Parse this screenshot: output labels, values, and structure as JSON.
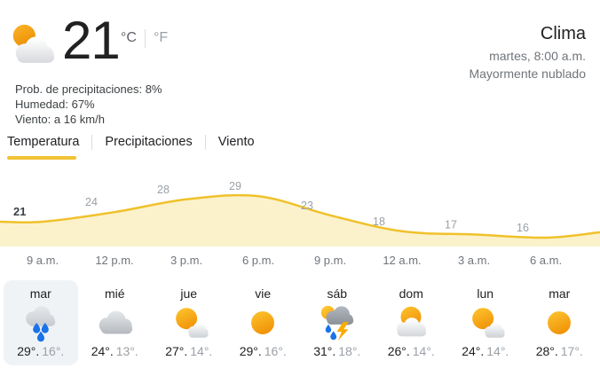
{
  "header": {
    "title": "Clima",
    "subtitle": "martes, 8:00 a.m.",
    "condition": "Mayormente nublado"
  },
  "current": {
    "temperature": "21",
    "unit_celsius": "°C",
    "unit_fahrenheit": "°F",
    "icon": "mostly-cloudy",
    "precipitation": "Prob. de precipitaciones: 8%",
    "humidity": "Humedad: 67%",
    "wind": "Viento: a 16 km/h"
  },
  "tabs": [
    {
      "label": "Temperatura",
      "active": true
    },
    {
      "label": "Precipitaciones",
      "active": false
    },
    {
      "label": "Viento",
      "active": false
    }
  ],
  "chart_data": {
    "type": "area",
    "title": "Temperatura",
    "unit": "°C",
    "x": [
      "9 a.m.",
      "12 p.m.",
      "3 p.m.",
      "6 p.m.",
      "9 p.m.",
      "12 a.m.",
      "3 a.m.",
      "6 a.m."
    ],
    "values": [
      21,
      24,
      28,
      29,
      23,
      18,
      17,
      16
    ],
    "right_edge_value": 17.7,
    "ylim": [
      14,
      31
    ],
    "grid": false,
    "legend": false,
    "line_color": "#f0c12b",
    "fill_color": "#fbf2cc",
    "label_color": "#9aa0a6",
    "first_label_color": "#3c4043"
  },
  "forecast": [
    {
      "day": "mar",
      "icon": "rain",
      "high": "29°.",
      "low": "16°.",
      "selected": true
    },
    {
      "day": "mié",
      "icon": "cloudy",
      "high": "24°.",
      "low": "13°.",
      "selected": false
    },
    {
      "day": "jue",
      "icon": "mostly-sunny",
      "high": "27°.",
      "low": "14°.",
      "selected": false
    },
    {
      "day": "vie",
      "icon": "sunny",
      "high": "29°.",
      "low": "16°.",
      "selected": false
    },
    {
      "day": "sáb",
      "icon": "storm",
      "high": "31°.",
      "low": "18°.",
      "selected": false
    },
    {
      "day": "dom",
      "icon": "partly-cloudy",
      "high": "26°.",
      "low": "14°.",
      "selected": false
    },
    {
      "day": "lun",
      "icon": "mostly-sunny",
      "high": "24°.",
      "low": "14°.",
      "selected": false
    },
    {
      "day": "mar",
      "icon": "sunny",
      "high": "28°.",
      "low": "17°.",
      "selected": false
    }
  ]
}
